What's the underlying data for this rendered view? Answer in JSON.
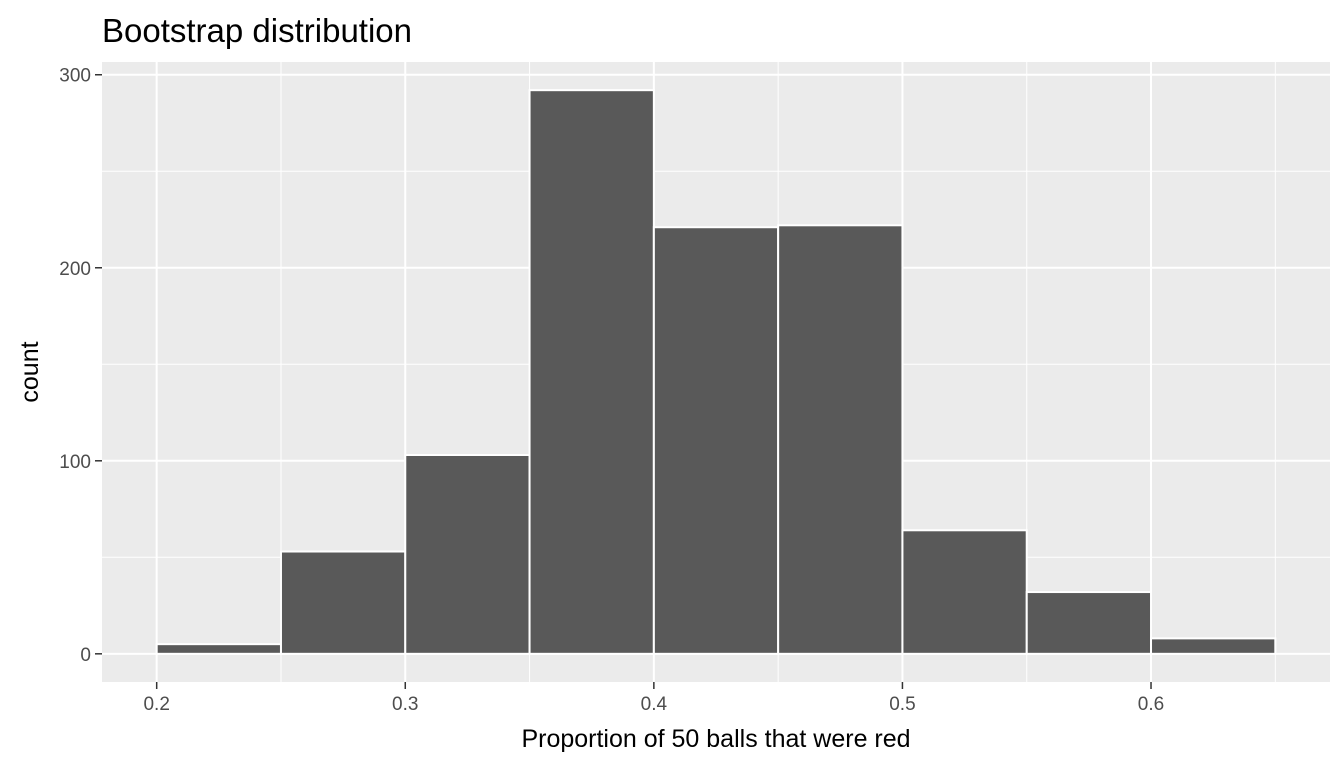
{
  "chart_data": {
    "type": "bar",
    "title": "Bootstrap distribution",
    "xlabel": "Proportion of 50 balls that were red",
    "ylabel": "count",
    "bins": [
      {
        "x_start": 0.2,
        "x_end": 0.25,
        "count": 5
      },
      {
        "x_start": 0.25,
        "x_end": 0.3,
        "count": 53
      },
      {
        "x_start": 0.3,
        "x_end": 0.35,
        "count": 103
      },
      {
        "x_start": 0.35,
        "x_end": 0.4,
        "count": 292
      },
      {
        "x_start": 0.4,
        "x_end": 0.45,
        "count": 221
      },
      {
        "x_start": 0.45,
        "x_end": 0.5,
        "count": 222
      },
      {
        "x_start": 0.5,
        "x_end": 0.55,
        "count": 64
      },
      {
        "x_start": 0.55,
        "x_end": 0.6,
        "count": 32
      },
      {
        "x_start": 0.6,
        "x_end": 0.65,
        "count": 8
      }
    ],
    "xlim": [
      0.178,
      0.672
    ],
    "ylim": [
      -14.6,
      306.6
    ],
    "x_ticks": [
      {
        "value": 0.2,
        "label": "0.2"
      },
      {
        "value": 0.3,
        "label": "0.3"
      },
      {
        "value": 0.4,
        "label": "0.4"
      },
      {
        "value": 0.5,
        "label": "0.5"
      },
      {
        "value": 0.6,
        "label": "0.6"
      }
    ],
    "y_ticks": [
      {
        "value": 0,
        "label": "0"
      },
      {
        "value": 100,
        "label": "100"
      },
      {
        "value": 200,
        "label": "200"
      },
      {
        "value": 300,
        "label": "300"
      }
    ],
    "x_minor_ticks": [
      0.25,
      0.35,
      0.45,
      0.55,
      0.65
    ],
    "y_minor_ticks": [
      50,
      150,
      250
    ],
    "grid": true,
    "legend": "none",
    "colors": {
      "panel_background": "#EBEBEB",
      "grid": "#FFFFFF",
      "bar_fill": "#595959",
      "bar_outline": "#FFFFFF",
      "tick_label": "#4D4D4D"
    }
  }
}
